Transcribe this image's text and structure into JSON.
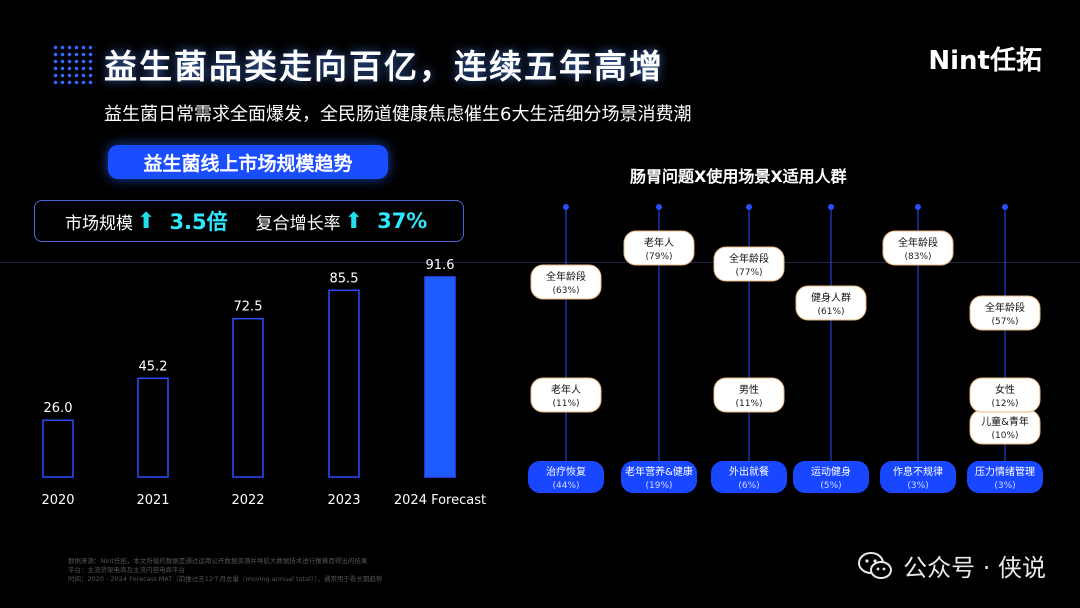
{
  "header": {
    "title": "益生菌品类走向百亿，连续五年高增",
    "subtitle": "益生菌日常需求全面爆发，全民肠道健康焦虑催生6大生活细分场景消费潮",
    "logo": "Nint任拓"
  },
  "left_panel": {
    "title": "益生菌线上市场规模趋势",
    "stat1_label": "市场规模",
    "stat1_value": "3.5倍",
    "stat2_label": "复合增长率",
    "stat2_value": "37%",
    "arrow": "⬆"
  },
  "right_panel": {
    "title": "肠胃问题X使用场景X适用人群"
  },
  "chart_data": [
    {
      "type": "bar",
      "categories": [
        "2020",
        "2021",
        "2022",
        "2023",
        "2024 Forecast"
      ],
      "values": [
        26.0,
        45.2,
        72.5,
        85.5,
        91.6
      ],
      "value_labels": [
        "26.0",
        "45.2",
        "72.5",
        "85.5",
        "91.6"
      ],
      "highlight_index": 4,
      "colors": {
        "outline": "#2a4dff",
        "highlight": "#1f5cff"
      }
    },
    {
      "type": "table",
      "columns": [
        {
          "scenario": "治疗恢复",
          "scenario_pct": "(44%)",
          "bubbles": [
            {
              "label": "老年人",
              "pct": "(11%)",
              "level": "low"
            },
            {
              "label": "全年龄段",
              "pct": "(63%)",
              "level": "high"
            }
          ]
        },
        {
          "scenario": "老年营养&健康",
          "scenario_pct": "(19%)",
          "bubbles": [
            {
              "label": "老年人",
              "pct": "(79%)",
              "level": "top"
            }
          ]
        },
        {
          "scenario": "外出就餐",
          "scenario_pct": "(6%)",
          "bubbles": [
            {
              "label": "男性",
              "pct": "(11%)",
              "level": "low"
            },
            {
              "label": "全年龄段",
              "pct": "(77%)",
              "level": "top2"
            }
          ]
        },
        {
          "scenario": "运动健身",
          "scenario_pct": "(5%)",
          "bubbles": [
            {
              "label": "健身人群",
              "pct": "(61%)",
              "level": "mid"
            }
          ]
        },
        {
          "scenario": "作息不规律",
          "scenario_pct": "(3%)",
          "bubbles": [
            {
              "label": "全年龄段",
              "pct": "(83%)",
              "level": "top"
            }
          ]
        },
        {
          "scenario": "压力情绪管理",
          "scenario_pct": "(3%)",
          "bubbles": [
            {
              "label": "儿童&青年",
              "pct": "(10%)",
              "level": "lower"
            },
            {
              "label": "女性",
              "pct": "(12%)",
              "level": "low"
            },
            {
              "label": "全年龄段",
              "pct": "(57%)",
              "level": "mid2"
            }
          ]
        }
      ],
      "colors": {
        "line": "#2a4dff",
        "pill": "#1947ff",
        "bubble_bg": "#ffffff",
        "bubble_border": "#e8b880"
      }
    }
  ],
  "footnote": {
    "line1": "数据来源：Nint任拓，本文所载的数据是通过运用公开数据资源并导航大数据技术进行推算而得出的结果",
    "line2": "平台：主流货架电商及主流内容电商平台",
    "line3": "时间：2020 - 2024 Forecast MAT（前推过去12个月总量（moving annual total））。通常用于看长期趋势"
  },
  "watermark": {
    "text": "公众号 · 侠说"
  }
}
